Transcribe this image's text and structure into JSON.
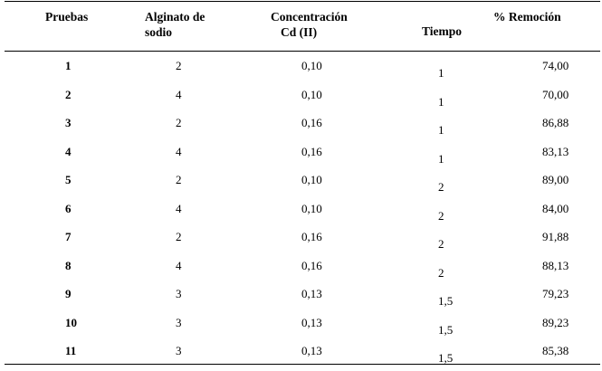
{
  "table": {
    "headers": {
      "pruebas": "Pruebas",
      "alginato_line1": "Alginato de",
      "alginato_line2": "sodio",
      "concentracion_line1": "Concentración",
      "concentracion_line2": "Cd (II)",
      "tiempo": "Tiempo",
      "remocion": "% Remoción"
    },
    "rows": [
      {
        "prueba": "1",
        "alginato": "2",
        "concentracion": "0,10",
        "tiempo": "1",
        "remocion": "74,00"
      },
      {
        "prueba": "2",
        "alginato": "4",
        "concentracion": "0,10",
        "tiempo": "1",
        "remocion": "70,00"
      },
      {
        "prueba": "3",
        "alginato": "2",
        "concentracion": "0,16",
        "tiempo": "1",
        "remocion": "86,88"
      },
      {
        "prueba": "4",
        "alginato": "4",
        "concentracion": "0,16",
        "tiempo": "1",
        "remocion": "83,13"
      },
      {
        "prueba": "5",
        "alginato": "2",
        "concentracion": "0,10",
        "tiempo": "2",
        "remocion": "89,00"
      },
      {
        "prueba": "6",
        "alginato": "4",
        "concentracion": "0,10",
        "tiempo": "2",
        "remocion": "84,00"
      },
      {
        "prueba": "7",
        "alginato": "2",
        "concentracion": "0,16",
        "tiempo": "2",
        "remocion": "91,88"
      },
      {
        "prueba": "8",
        "alginato": "4",
        "concentracion": "0,16",
        "tiempo": "2",
        "remocion": "88,13"
      },
      {
        "prueba": "9",
        "alginato": "3",
        "concentracion": "0,13",
        "tiempo": "1,5",
        "remocion": "79,23"
      },
      {
        "prueba": "10",
        "alginato": "3",
        "concentracion": "0,13",
        "tiempo": "1,5",
        "remocion": "89,23"
      },
      {
        "prueba": "11",
        "alginato": "3",
        "concentracion": "0,13",
        "tiempo": "1,5",
        "remocion": "85,38"
      }
    ]
  }
}
